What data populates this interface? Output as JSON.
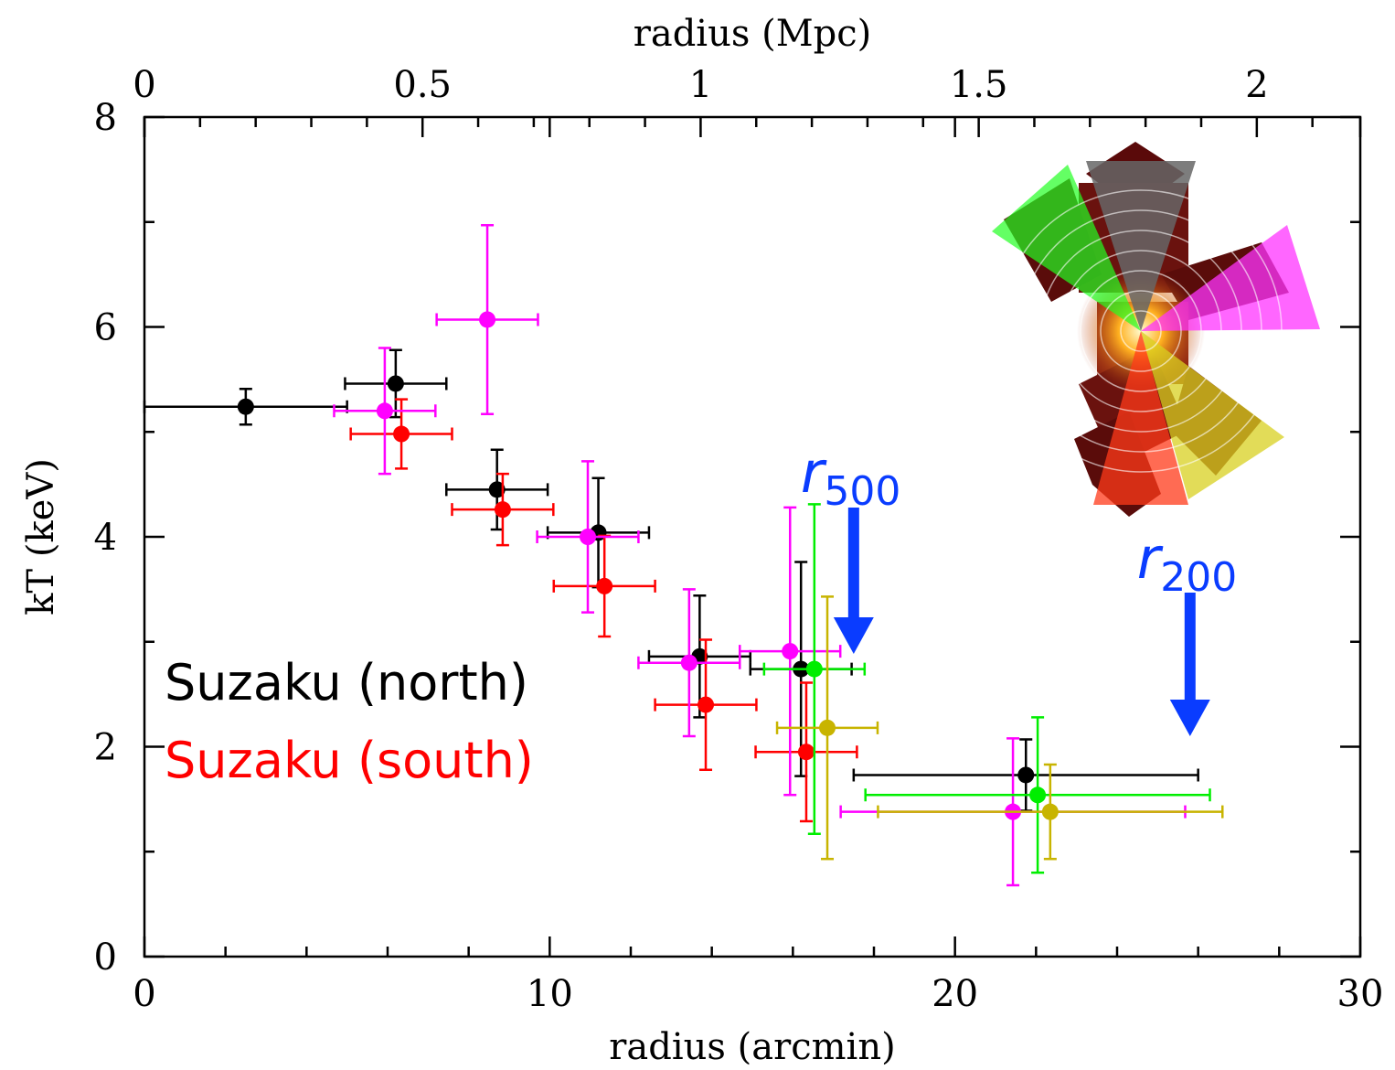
{
  "chart_data": {
    "type": "errorbar",
    "xlabel": "radius (arcmin)",
    "x2label": "radius (Mpc)",
    "ylabel": "kT (keV)",
    "xlim": [
      0,
      30
    ],
    "xticks": [
      0,
      10,
      20,
      30
    ],
    "xticks_minor": [
      2,
      4,
      6,
      8,
      12,
      14,
      16,
      18,
      22,
      24,
      26,
      28
    ],
    "x2lim": [
      0,
      2.186
    ],
    "x2ticks": [
      0,
      0.5,
      1,
      1.5,
      2
    ],
    "x2ticks_minor": [
      0.1,
      0.2,
      0.3,
      0.4,
      0.6,
      0.7,
      0.8,
      0.9,
      1.1,
      1.2,
      1.3,
      1.4,
      1.6,
      1.7,
      1.8,
      1.9,
      2.1
    ],
    "ylim": [
      0,
      8
    ],
    "yticks": [
      0,
      2,
      4,
      6,
      8
    ],
    "yticks_minor": [
      1,
      3,
      5,
      7
    ],
    "legend": "left",
    "series": [
      {
        "name": "Suzaku (north)",
        "color": "#000000",
        "x": [
          2.5,
          6.2,
          8.7,
          11.2,
          13.7,
          16.2,
          21.75
        ],
        "xerr": [
          2.5,
          1.25,
          1.25,
          1.25,
          1.25,
          1.25,
          4.25
        ],
        "values": [
          5.24,
          5.46,
          4.45,
          4.04,
          2.86,
          2.74,
          1.73
        ],
        "yerr": [
          0.17,
          0.32,
          0.38,
          0.52,
          0.58,
          1.02,
          0.34
        ]
      },
      {
        "name": "Suzaku (south)",
        "color": "#ff0000",
        "x": [
          6.34,
          8.84,
          11.35,
          13.85,
          16.33
        ],
        "xerr": [
          1.25,
          1.25,
          1.25,
          1.25,
          1.25
        ],
        "values": [
          4.98,
          4.26,
          3.53,
          2.4,
          1.95
        ],
        "yerr": [
          0.33,
          0.34,
          0.48,
          0.62,
          0.66
        ]
      },
      {
        "color": "#ff00ff",
        "x": [
          5.93,
          8.46,
          10.94,
          13.44,
          15.93,
          21.43
        ],
        "xerr": [
          1.25,
          1.25,
          1.25,
          1.25,
          1.24,
          4.25
        ],
        "values": [
          5.2,
          6.07,
          4.0,
          2.8,
          2.91,
          1.38
        ],
        "yerr": [
          0.6,
          0.9,
          0.72,
          0.7,
          1.37,
          0.7
        ]
      },
      {
        "color": "#00ee00",
        "x": [
          16.53,
          22.04
        ],
        "xerr": [
          1.24,
          4.25
        ],
        "values": [
          2.74,
          1.54
        ],
        "yerr": [
          1.57,
          0.74
        ]
      },
      {
        "color": "#c8b400",
        "x": [
          16.85,
          22.35
        ],
        "xerr": [
          1.24,
          4.25
        ],
        "values": [
          2.18,
          1.38
        ],
        "yerr": [
          1.25,
          0.45
        ]
      }
    ],
    "annotations": [
      {
        "text": "r",
        "subscript": "500",
        "x": 17.5,
        "color": "#0a3cff"
      },
      {
        "text": "r",
        "subscript": "200",
        "x": 25.8,
        "color": "#0a3cff"
      }
    ]
  }
}
